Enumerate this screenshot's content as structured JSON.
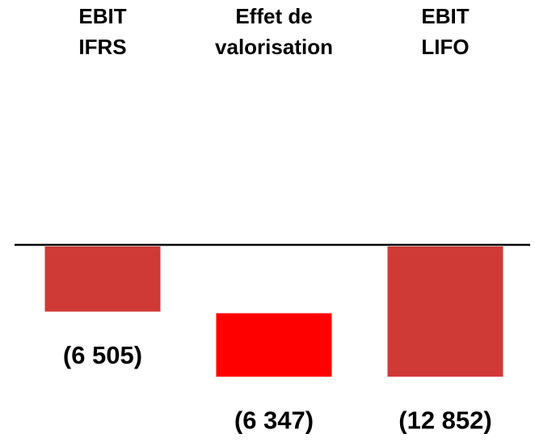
{
  "chart_data": {
    "type": "waterfall",
    "categories": [
      [
        "EBIT",
        "IFRS"
      ],
      [
        "Effet de",
        "valorisation"
      ],
      [
        "EBIT",
        "LIFO"
      ]
    ],
    "values": [
      -6505,
      -6347,
      -12852
    ],
    "value_labels": [
      "(6 505)",
      "(6 347)",
      "(12 852)"
    ],
    "measures": [
      "absolute",
      "relative",
      "total"
    ],
    "colors": [
      "#d03a36",
      "#ff0000",
      "#d03a36"
    ]
  }
}
